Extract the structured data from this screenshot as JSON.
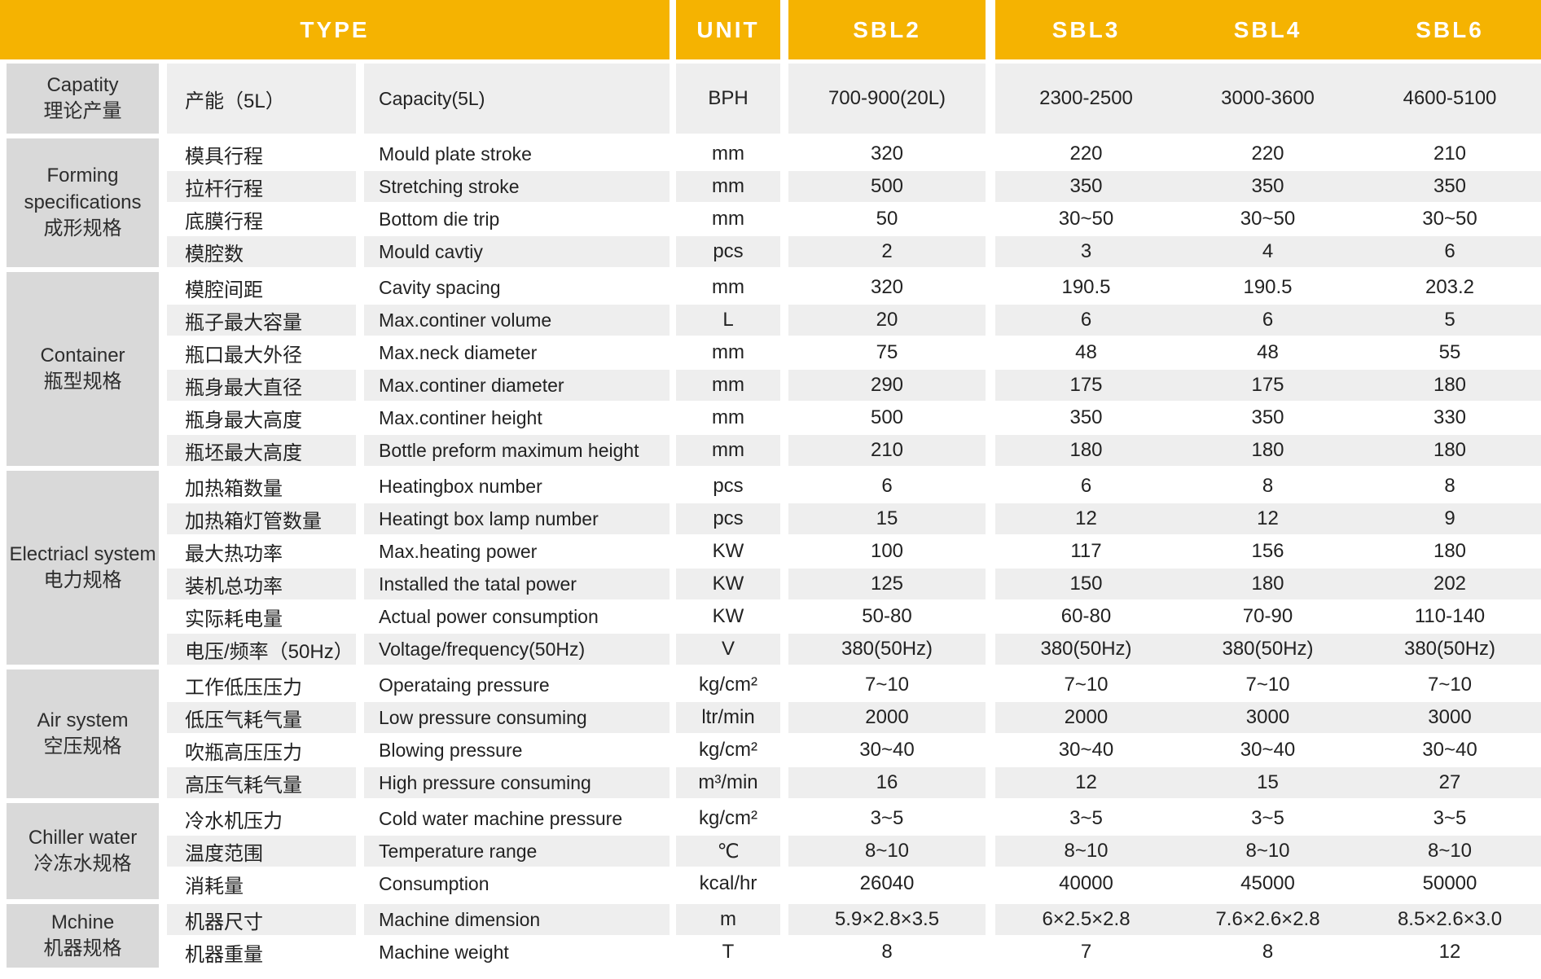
{
  "colors": {
    "header_bg": "#F5B301",
    "header_text": "#FFFFFF",
    "group_bg": "#D9D9D9",
    "row_shade_bg": "#EEEEEE",
    "row_plain_bg": "#FFFFFF",
    "body_text": "#222222"
  },
  "header": {
    "type_label": "TYPE",
    "unit_label": "UNIT",
    "models": [
      "SBL2",
      "SBL3",
      "SBL4",
      "SBL6"
    ]
  },
  "sections": [
    {
      "group": {
        "en": "Capatity",
        "cn": "理论产量"
      },
      "rows": [
        {
          "cn": "产能（5L）",
          "en": "Capacity(5L)",
          "unit": "BPH",
          "values": [
            "700-900(20L)",
            "2300-2500",
            "3000-3600",
            "4600-5100"
          ],
          "tall": true
        }
      ]
    },
    {
      "group": {
        "en": "Forming specifications",
        "cn": "成形规格"
      },
      "rows": [
        {
          "cn": "模具行程",
          "en": "Mould plate stroke",
          "unit": "mm",
          "values": [
            "320",
            "220",
            "220",
            "210"
          ]
        },
        {
          "cn": "拉杆行程",
          "en": "Stretching stroke",
          "unit": "mm",
          "values": [
            "500",
            "350",
            "350",
            "350"
          ]
        },
        {
          "cn": "底膜行程",
          "en": "Bottom die trip",
          "unit": "mm",
          "values": [
            "50",
            "30~50",
            "30~50",
            "30~50"
          ]
        },
        {
          "cn": "模腔数",
          "en": "Mould cavtiy",
          "unit": "pcs",
          "values": [
            "2",
            "3",
            "4",
            "6"
          ]
        }
      ]
    },
    {
      "group": {
        "en": "Container",
        "cn": "瓶型规格"
      },
      "rows": [
        {
          "cn": "模腔间距",
          "en": "Cavity spacing",
          "unit": "mm",
          "values": [
            "320",
            "190.5",
            "190.5",
            "203.2"
          ]
        },
        {
          "cn": "瓶子最大容量",
          "en": "Max.continer volume",
          "unit": "L",
          "values": [
            "20",
            "6",
            "6",
            "5"
          ]
        },
        {
          "cn": "瓶口最大外径",
          "en": "Max.neck diameter",
          "unit": "mm",
          "values": [
            "75",
            "48",
            "48",
            "55"
          ]
        },
        {
          "cn": "瓶身最大直径",
          "en": "Max.continer diameter",
          "unit": "mm",
          "values": [
            "290",
            "175",
            "175",
            "180"
          ]
        },
        {
          "cn": "瓶身最大高度",
          "en": "Max.continer height",
          "unit": "mm",
          "values": [
            "500",
            "350",
            "350",
            "330"
          ]
        },
        {
          "cn": "瓶坯最大高度",
          "en": "Bottle preform maximum height",
          "unit": "mm",
          "values": [
            "210",
            "180",
            "180",
            "180"
          ]
        }
      ]
    },
    {
      "group": {
        "en": "Electriacl system",
        "cn": "电力规格"
      },
      "rows": [
        {
          "cn": "加热箱数量",
          "en": "Heatingbox number",
          "unit": "pcs",
          "values": [
            "6",
            "6",
            "8",
            "8"
          ]
        },
        {
          "cn": "加热箱灯管数量",
          "en": "Heatingt box lamp number",
          "unit": "pcs",
          "values": [
            "15",
            "12",
            "12",
            "9"
          ]
        },
        {
          "cn": "最大热功率",
          "en": "Max.heating power",
          "unit": "KW",
          "values": [
            "100",
            "117",
            "156",
            "180"
          ]
        },
        {
          "cn": "装机总功率",
          "en": "Installed the tatal power",
          "unit": "KW",
          "values": [
            "125",
            "150",
            "180",
            "202"
          ]
        },
        {
          "cn": "实际耗电量",
          "en": "Actual power consumption",
          "unit": "KW",
          "values": [
            "50-80",
            "60-80",
            "70-90",
            "110-140"
          ]
        },
        {
          "cn": "电压/频率（50Hz）",
          "en": "Voltage/frequency(50Hz)",
          "unit": "V",
          "values": [
            "380(50Hz)",
            "380(50Hz)",
            "380(50Hz)",
            "380(50Hz)"
          ]
        }
      ]
    },
    {
      "group": {
        "en": "Air system",
        "cn": "空压规格"
      },
      "rows": [
        {
          "cn": "工作低压压力",
          "en": "Operataing pressure",
          "unit": "kg/cm²",
          "values": [
            "7~10",
            "7~10",
            "7~10",
            "7~10"
          ]
        },
        {
          "cn": "低压气耗气量",
          "en": "Low pressure consuming",
          "unit": "ltr/min",
          "values": [
            "2000",
            "2000",
            "3000",
            "3000"
          ]
        },
        {
          "cn": "吹瓶高压压力",
          "en": "Blowing pressure",
          "unit": "kg/cm²",
          "values": [
            "30~40",
            "30~40",
            "30~40",
            "30~40"
          ]
        },
        {
          "cn": "高压气耗气量",
          "en": "High pressure consuming",
          "unit": "m³/min",
          "values": [
            "16",
            "12",
            "15",
            "27"
          ]
        }
      ]
    },
    {
      "group": {
        "en": "Chiller water",
        "cn": "冷冻水规格"
      },
      "rows": [
        {
          "cn": "冷水机压力",
          "en": "Cold water machine pressure",
          "unit": "kg/cm²",
          "values": [
            "3~5",
            "3~5",
            "3~5",
            "3~5"
          ]
        },
        {
          "cn": "温度范围",
          "en": "Temperature range",
          "unit": "℃",
          "values": [
            "8~10",
            "8~10",
            "8~10",
            "8~10"
          ]
        },
        {
          "cn": "消耗量",
          "en": "Consumption",
          "unit": "kcal/hr",
          "values": [
            "26040",
            "40000",
            "45000",
            "50000"
          ]
        }
      ]
    },
    {
      "group": {
        "en": "Mchine",
        "cn": "机器规格"
      },
      "rows": [
        {
          "cn": "机器尺寸",
          "en": "Machine dimension",
          "unit": "m",
          "values": [
            "5.9×2.8×3.5",
            "6×2.5×2.8",
            "7.6×2.6×2.8",
            "8.5×2.6×3.0"
          ]
        },
        {
          "cn": "机器重量",
          "en": "Machine weight",
          "unit": "T",
          "values": [
            "8",
            "7",
            "8",
            "12"
          ]
        }
      ]
    }
  ]
}
